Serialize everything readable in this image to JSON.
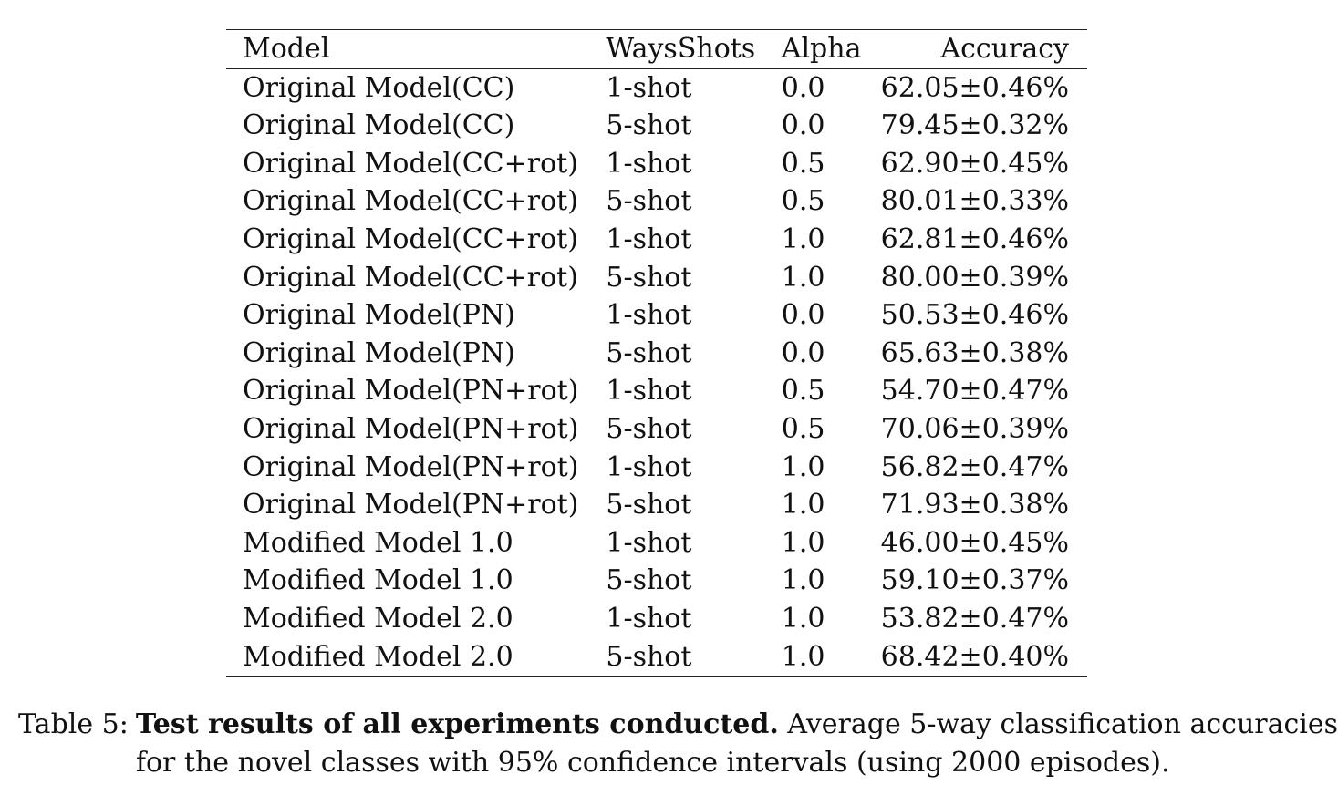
{
  "table": {
    "headers": {
      "model": "Model",
      "ways": "WaysShots",
      "alpha": "Alpha",
      "accuracy": "Accuracy"
    },
    "rows": [
      {
        "model": "Original Model(CC)",
        "ways": "1-shot",
        "alpha": "0.0",
        "accuracy": "62.05±0.46%"
      },
      {
        "model": "Original Model(CC)",
        "ways": "5-shot",
        "alpha": "0.0",
        "accuracy": "79.45±0.32%"
      },
      {
        "model": "Original Model(CC+rot)",
        "ways": "1-shot",
        "alpha": "0.5",
        "accuracy": "62.90±0.45%"
      },
      {
        "model": "Original Model(CC+rot)",
        "ways": "5-shot",
        "alpha": "0.5",
        "accuracy": "80.01±0.33%"
      },
      {
        "model": "Original Model(CC+rot)",
        "ways": "1-shot",
        "alpha": "1.0",
        "accuracy": "62.81±0.46%"
      },
      {
        "model": "Original Model(CC+rot)",
        "ways": "5-shot",
        "alpha": "1.0",
        "accuracy": "80.00±0.39%"
      },
      {
        "model": "Original Model(PN)",
        "ways": "1-shot",
        "alpha": "0.0",
        "accuracy": "50.53±0.46%"
      },
      {
        "model": "Original Model(PN)",
        "ways": "5-shot",
        "alpha": "0.0",
        "accuracy": "65.63±0.38%"
      },
      {
        "model": "Original Model(PN+rot)",
        "ways": "1-shot",
        "alpha": "0.5",
        "accuracy": "54.70±0.47%"
      },
      {
        "model": "Original Model(PN+rot)",
        "ways": "5-shot",
        "alpha": "0.5",
        "accuracy": "70.06±0.39%"
      },
      {
        "model": "Original Model(PN+rot)",
        "ways": "1-shot",
        "alpha": "1.0",
        "accuracy": "56.82±0.47%"
      },
      {
        "model": "Original Model(PN+rot)",
        "ways": "5-shot",
        "alpha": "1.0",
        "accuracy": "71.93±0.38%"
      },
      {
        "model": "Modified Model 1.0",
        "ways": "1-shot",
        "alpha": "1.0",
        "accuracy": "46.00±0.45%"
      },
      {
        "model": "Modified Model 1.0",
        "ways": "5-shot",
        "alpha": "1.0",
        "accuracy": "59.10±0.37%"
      },
      {
        "model": "Modified Model 2.0",
        "ways": "1-shot",
        "alpha": "1.0",
        "accuracy": "53.82±0.47%"
      },
      {
        "model": "Modified Model 2.0",
        "ways": "5-shot",
        "alpha": "1.0",
        "accuracy": "68.42±0.40%"
      }
    ]
  },
  "caption": {
    "label": "Table 5:",
    "title": "Test results of all experiments conducted.",
    "line1_rest": "Average 5-way classification accuracies",
    "line2": "for the novel classes with 95% confidence intervals (using 2000 episodes)."
  }
}
